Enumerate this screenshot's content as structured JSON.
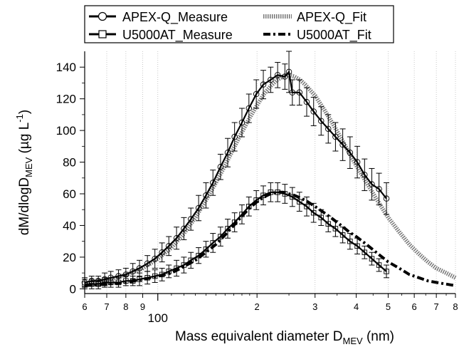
{
  "chart_data": {
    "type": "line",
    "xscale": "log",
    "xlabel_main": "Mass equivalent diameter D",
    "xlabel_sub": "MEV",
    "xlabel_tail": " (nm)",
    "ylabel_main": "dM/dlogD",
    "ylabel_sub": "MEV",
    "ylabel_tail": " (µg L",
    "ylabel_sup": "-1",
    "ylabel_end": ")",
    "xlim": [
      60,
      800
    ],
    "ylim": [
      -3,
      150
    ],
    "x_ticks": [
      {
        "value": 60,
        "label": "6"
      },
      {
        "value": 70,
        "label": "7"
      },
      {
        "value": 80,
        "label": "8"
      },
      {
        "value": 90,
        "label": "9"
      },
      {
        "value": 200,
        "label": "2"
      },
      {
        "value": 300,
        "label": "3"
      },
      {
        "value": 400,
        "label": "4"
      },
      {
        "value": 500,
        "label": "5"
      },
      {
        "value": 600,
        "label": "6"
      },
      {
        "value": 700,
        "label": "7"
      },
      {
        "value": 800,
        "label": "8"
      }
    ],
    "x_major_label": {
      "value": 100,
      "label": "100"
    },
    "y_ticks": [
      0,
      20,
      40,
      60,
      80,
      100,
      120,
      140
    ],
    "grid": "vertical dotted at x ticks",
    "legend_position": "top",
    "series": [
      {
        "name": "APEX-Q_Measure",
        "style": "solid-circle",
        "color": "#000000",
        "x": [
          60,
          63,
          66,
          69,
          72,
          76,
          80,
          84,
          88,
          93,
          98,
          103,
          108,
          114,
          120,
          126,
          133,
          140,
          147,
          155,
          163,
          171,
          180,
          189,
          199,
          209,
          220,
          231,
          243,
          250,
          256,
          269,
          283,
          297,
          313,
          329,
          346,
          364,
          383,
          403,
          424,
          446,
          469,
          494
        ],
        "y": [
          4,
          5,
          5,
          6,
          7,
          8,
          9,
          11,
          13,
          16,
          19,
          23,
          27,
          32,
          38,
          44,
          51,
          59,
          67,
          77,
          86,
          96,
          105,
          114,
          123,
          129,
          132,
          135,
          134,
          137,
          124,
          124,
          118,
          112,
          106,
          101,
          96,
          91,
          86,
          80,
          72,
          66,
          63,
          57
        ],
        "err": [
          3,
          3,
          3,
          4,
          4,
          4,
          4,
          5,
          5,
          5,
          6,
          6,
          6,
          7,
          7,
          7,
          8,
          8,
          8,
          8,
          9,
          9,
          9,
          9,
          9,
          9,
          8,
          8,
          8,
          13,
          8,
          8,
          9,
          9,
          9,
          9,
          9,
          10,
          10,
          10,
          10,
          10,
          10,
          10
        ]
      },
      {
        "name": "U5000AT_Measure",
        "style": "solid-square",
        "color": "#000000",
        "x": [
          60,
          63,
          66,
          69,
          72,
          76,
          80,
          84,
          88,
          93,
          98,
          103,
          108,
          114,
          120,
          126,
          133,
          140,
          147,
          155,
          163,
          171,
          180,
          189,
          199,
          209,
          220,
          231,
          243,
          256,
          269,
          283,
          297,
          313,
          329,
          346,
          364,
          383,
          403,
          424,
          446,
          469,
          494
        ],
        "y": [
          3,
          3,
          3,
          4,
          4,
          4,
          5,
          5,
          6,
          7,
          8,
          9,
          11,
          13,
          15,
          18,
          21,
          25,
          29,
          33,
          38,
          42,
          47,
          52,
          56,
          59,
          61,
          61,
          60,
          58,
          55,
          52,
          48,
          45,
          41,
          38,
          34,
          30,
          27,
          23,
          19,
          15,
          11
        ],
        "err": [
          3,
          3,
          3,
          3,
          3,
          3,
          3,
          3,
          4,
          4,
          4,
          4,
          4,
          5,
          5,
          5,
          5,
          5,
          6,
          6,
          6,
          6,
          6,
          6,
          6,
          6,
          6,
          6,
          6,
          6,
          6,
          6,
          6,
          5,
          5,
          5,
          5,
          5,
          5,
          4,
          4,
          4,
          4
        ]
      },
      {
        "name": "APEX-Q_Fit",
        "style": "dotted-thick",
        "color": "#777777",
        "x": [
          60,
          65,
          70,
          75,
          80,
          85,
          90,
          95,
          100,
          110,
          120,
          130,
          140,
          150,
          160,
          170,
          180,
          190,
          200,
          210,
          220,
          230,
          240,
          250,
          260,
          270,
          280,
          300,
          320,
          340,
          360,
          380,
          400,
          430,
          460,
          500,
          540,
          580,
          620,
          660,
          700,
          750,
          800
        ],
        "y": [
          3,
          4,
          5,
          7,
          9,
          11,
          13,
          16,
          19,
          26,
          35,
          45,
          56,
          67,
          78,
          89,
          99,
          108,
          116,
          123,
          128,
          132,
          134,
          135,
          134,
          132,
          129,
          122,
          113,
          104,
          95,
          86,
          78,
          67,
          57,
          45,
          36,
          28,
          22,
          17,
          13,
          10,
          7
        ]
      },
      {
        "name": "U5000AT_Fit",
        "style": "dash-dot",
        "color": "#000000",
        "x": [
          60,
          70,
          80,
          90,
          100,
          110,
          120,
          130,
          140,
          150,
          160,
          170,
          180,
          190,
          200,
          210,
          220,
          230,
          240,
          250,
          260,
          280,
          300,
          320,
          340,
          360,
          380,
          400,
          430,
          460,
          500,
          540,
          580,
          620,
          660,
          700,
          750,
          800
        ],
        "y": [
          2,
          3,
          4,
          6,
          8,
          10,
          14,
          18,
          23,
          28,
          34,
          40,
          46,
          51,
          55,
          58,
          60,
          61,
          61,
          60,
          59,
          56,
          52,
          48,
          44,
          40,
          36,
          33,
          28,
          23,
          17,
          13,
          9,
          7,
          5,
          4,
          3,
          2
        ]
      }
    ]
  }
}
